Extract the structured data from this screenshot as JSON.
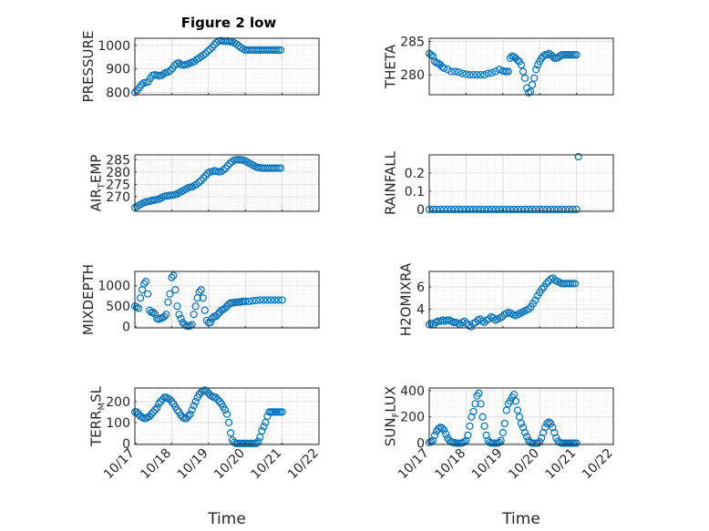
{
  "figure": {
    "title": "Figure 2 low",
    "marker_color": "#0072BD"
  },
  "chart_data": [
    {
      "id": "pressure",
      "type": "scatter",
      "ylabel": "PRESSURE",
      "xlim": [
        0,
        5
      ],
      "ylim": [
        790,
        1030
      ],
      "yticks": [
        800,
        900,
        1000
      ],
      "xticks": [
        0,
        1,
        2,
        3,
        4,
        5
      ],
      "x": [
        0,
        0.06,
        0.12,
        0.18,
        0.24,
        0.3,
        0.36,
        0.42,
        0.48,
        0.54,
        0.6,
        0.66,
        0.72,
        0.78,
        0.84,
        0.9,
        0.96,
        1.02,
        1.08,
        1.14,
        1.2,
        1.26,
        1.32,
        1.38,
        1.44,
        1.5,
        1.56,
        1.62,
        1.68,
        1.74,
        1.8,
        1.86,
        1.92,
        1.98,
        2.04,
        2.1,
        2.16,
        2.22,
        2.28,
        2.34,
        2.4,
        2.46,
        2.52,
        2.58,
        2.64,
        2.7,
        2.76,
        2.82,
        2.88,
        2.94,
        3.0,
        3.06,
        3.12,
        3.18,
        3.24,
        3.3,
        3.36,
        3.42,
        3.48,
        3.54,
        3.6,
        3.66,
        3.72,
        3.78,
        3.84,
        3.9,
        3.96
      ],
      "y": [
        800,
        808,
        820,
        832,
        840,
        842,
        845,
        860,
        872,
        875,
        873,
        870,
        872,
        878,
        884,
        886,
        892,
        902,
        915,
        922,
        925,
        918,
        916,
        918,
        920,
        925,
        928,
        932,
        940,
        945,
        952,
        958,
        965,
        975,
        982,
        992,
        1003,
        1012,
        1018,
        1020,
        1018,
        1017,
        1018,
        1016,
        1015,
        1010,
        1005,
        998,
        990,
        985,
        980,
        980,
        980,
        980,
        980,
        980,
        980,
        980,
        980,
        980,
        980,
        980,
        980,
        980,
        980,
        980,
        980
      ]
    },
    {
      "id": "theta",
      "type": "scatter",
      "ylabel": "THETA",
      "xlim": [
        0,
        5
      ],
      "ylim": [
        277,
        285.5
      ],
      "yticks": [
        280,
        285
      ],
      "xticks": [
        0,
        1,
        2,
        3,
        4,
        5
      ],
      "x": [
        0,
        0.05,
        0.1,
        0.15,
        0.2,
        0.25,
        0.3,
        0.35,
        0.4,
        0.5,
        0.6,
        0.7,
        0.8,
        0.9,
        1.0,
        1.1,
        1.2,
        1.3,
        1.4,
        1.5,
        1.6,
        1.7,
        1.8,
        1.9,
        2.0,
        2.05,
        2.1,
        2.15,
        2.2,
        2.25,
        2.3,
        2.35,
        2.4,
        2.45,
        2.5,
        2.55,
        2.6,
        2.65,
        2.7,
        2.75,
        2.8,
        2.85,
        2.9,
        2.95,
        3.0,
        3.05,
        3.1,
        3.15,
        3.2,
        3.25,
        3.3,
        3.35,
        3.4,
        3.45,
        3.5,
        3.55,
        3.6,
        3.65,
        3.7,
        3.75,
        3.8,
        3.85,
        3.9,
        3.95,
        4.0
      ],
      "y": [
        283.2,
        283,
        282.8,
        282,
        281.8,
        281.7,
        281.5,
        281.2,
        281,
        280.8,
        280.5,
        280.5,
        280.4,
        280.2,
        280.1,
        280,
        280,
        280,
        280,
        280,
        280.2,
        280.3,
        280.5,
        280.8,
        280.6,
        280.5,
        280.5,
        280.5,
        282.5,
        282.8,
        282.7,
        282.5,
        282.2,
        282,
        281.5,
        280.5,
        279.5,
        278,
        277.3,
        277.5,
        278.5,
        279.5,
        280.8,
        281.5,
        282,
        282.5,
        282.8,
        283,
        283,
        283.2,
        283,
        282.8,
        282.5,
        282.5,
        282.6,
        282.8,
        283,
        283,
        283,
        283,
        283,
        283,
        283,
        283,
        283
      ]
    },
    {
      "id": "air_temp",
      "type": "scatter",
      "ylabel_main": "AIR",
      "ylabel_sub": "T",
      "ylabel_rest": "EMP",
      "xlim": [
        0,
        5
      ],
      "ylim": [
        264,
        287
      ],
      "yticks": [
        270,
        275,
        280,
        285
      ],
      "xticks": [
        0,
        1,
        2,
        3,
        4,
        5
      ],
      "x": [
        0,
        0.06,
        0.12,
        0.18,
        0.24,
        0.3,
        0.36,
        0.42,
        0.48,
        0.54,
        0.6,
        0.66,
        0.72,
        0.78,
        0.84,
        0.9,
        0.96,
        1.02,
        1.08,
        1.14,
        1.2,
        1.26,
        1.32,
        1.38,
        1.44,
        1.5,
        1.56,
        1.62,
        1.68,
        1.74,
        1.8,
        1.86,
        1.92,
        1.98,
        2.04,
        2.1,
        2.16,
        2.22,
        2.28,
        2.34,
        2.4,
        2.46,
        2.52,
        2.58,
        2.64,
        2.7,
        2.76,
        2.82,
        2.88,
        2.94,
        3.0,
        3.06,
        3.12,
        3.18,
        3.24,
        3.3,
        3.36,
        3.42,
        3.48,
        3.54,
        3.6,
        3.66,
        3.72,
        3.78,
        3.84,
        3.9,
        3.96
      ],
      "y": [
        265.5,
        266,
        266.5,
        267,
        267.5,
        267.8,
        268,
        268.2,
        268.5,
        268.6,
        268.8,
        269,
        269.5,
        270,
        270.2,
        270.3,
        270.5,
        270.6,
        270.8,
        271,
        271.5,
        272,
        272.5,
        273,
        273.5,
        273.8,
        274,
        274.5,
        275,
        275.8,
        276.5,
        277.5,
        278.5,
        279.5,
        280,
        280.2,
        280.5,
        280.3,
        280.1,
        280.2,
        280.8,
        281.5,
        282.5,
        283.5,
        284.2,
        284.8,
        285,
        285,
        285,
        284.8,
        284.5,
        284,
        283.5,
        283,
        282.5,
        282,
        281.8,
        281.7,
        281.6,
        281.6,
        281.6,
        281.6,
        281.6,
        281.6,
        281.6,
        281.6,
        281.6
      ]
    },
    {
      "id": "rainfall",
      "type": "scatter",
      "ylabel": "RAINFALL",
      "xlim": [
        0,
        5
      ],
      "ylim": [
        -0.01,
        0.3
      ],
      "yticks": [
        0,
        0.1,
        0.2
      ],
      "ytick_labels": [
        "0",
        "0.1",
        "0.2"
      ],
      "xticks": [
        0,
        1,
        2,
        3,
        4,
        5
      ],
      "x": [
        0,
        0.1,
        0.2,
        0.3,
        0.4,
        0.5,
        0.6,
        0.7,
        0.8,
        0.9,
        1.0,
        1.1,
        1.2,
        1.3,
        1.4,
        1.5,
        1.6,
        1.7,
        1.8,
        1.9,
        2.0,
        2.1,
        2.2,
        2.3,
        2.4,
        2.5,
        2.6,
        2.7,
        2.8,
        2.9,
        3.0,
        3.1,
        3.2,
        3.3,
        3.4,
        3.5,
        3.6,
        3.7,
        3.8,
        3.9,
        4.0,
        4.05
      ],
      "y": [
        0,
        0,
        0,
        0,
        0,
        0,
        0,
        0,
        0,
        0,
        0,
        0,
        0,
        0,
        0,
        0,
        0,
        0,
        0,
        0,
        0,
        0,
        0,
        0,
        0,
        0,
        0,
        0,
        0,
        0,
        0,
        0,
        0,
        0,
        0,
        0,
        0,
        0,
        0,
        0,
        0,
        0.29
      ]
    },
    {
      "id": "mixdepth",
      "type": "scatter",
      "ylabel": "MIXDEPTH",
      "xlim": [
        0,
        5
      ],
      "ylim": [
        -30,
        1350
      ],
      "yticks": [
        0,
        500,
        1000
      ],
      "xticks": [
        0,
        1,
        2,
        3,
        4,
        5
      ],
      "x": [
        0,
        0.05,
        0.1,
        0.15,
        0.2,
        0.25,
        0.3,
        0.35,
        0.4,
        0.45,
        0.5,
        0.55,
        0.6,
        0.65,
        0.7,
        0.75,
        0.8,
        0.85,
        0.9,
        0.95,
        1.0,
        1.05,
        1.1,
        1.15,
        1.2,
        1.25,
        1.3,
        1.35,
        1.4,
        1.45,
        1.5,
        1.55,
        1.6,
        1.65,
        1.7,
        1.75,
        1.8,
        1.85,
        1.9,
        1.95,
        2.0,
        2.05,
        2.1,
        2.15,
        2.2,
        2.25,
        2.3,
        2.35,
        2.4,
        2.45,
        2.5,
        2.55,
        2.6,
        2.65,
        2.7,
        2.75,
        2.8,
        2.85,
        2.9,
        2.95,
        3.0,
        3.1,
        3.2,
        3.3,
        3.4,
        3.5,
        3.6,
        3.7,
        3.8,
        3.9,
        4.0
      ],
      "y": [
        500,
        480,
        450,
        700,
        900,
        1050,
        1100,
        800,
        400,
        350,
        350,
        300,
        200,
        180,
        200,
        220,
        250,
        300,
        600,
        800,
        1200,
        1250,
        900,
        500,
        300,
        200,
        100,
        50,
        20,
        10,
        20,
        50,
        300,
        500,
        700,
        850,
        900,
        700,
        400,
        150,
        100,
        100,
        200,
        250,
        250,
        300,
        350,
        400,
        420,
        450,
        500,
        550,
        580,
        580,
        590,
        600,
        600,
        600,
        610,
        620,
        620,
        620,
        630,
        640,
        650,
        650,
        650,
        650,
        650,
        650,
        650
      ]
    },
    {
      "id": "h2omixra",
      "type": "scatter",
      "ylabel": "H2OMIXRA",
      "xlim": [
        0,
        5
      ],
      "ylim": [
        2.3,
        7.4
      ],
      "yticks": [
        4,
        6
      ],
      "xticks": [
        0,
        1,
        2,
        3,
        4,
        5
      ],
      "x": [
        0,
        0.06,
        0.12,
        0.18,
        0.24,
        0.3,
        0.36,
        0.42,
        0.48,
        0.54,
        0.6,
        0.66,
        0.72,
        0.78,
        0.84,
        0.9,
        0.96,
        1.02,
        1.08,
        1.14,
        1.2,
        1.26,
        1.32,
        1.38,
        1.44,
        1.5,
        1.56,
        1.62,
        1.68,
        1.74,
        1.8,
        1.86,
        1.92,
        1.98,
        2.04,
        2.1,
        2.16,
        2.22,
        2.28,
        2.34,
        2.4,
        2.46,
        2.52,
        2.58,
        2.64,
        2.7,
        2.76,
        2.82,
        2.88,
        2.94,
        3.0,
        3.06,
        3.12,
        3.18,
        3.24,
        3.3,
        3.36,
        3.42,
        3.48,
        3.54,
        3.6,
        3.66,
        3.72,
        3.78,
        3.84,
        3.9,
        3.96
      ],
      "y": [
        2.6,
        2.7,
        2.6,
        2.8,
        2.9,
        2.9,
        3.0,
        2.9,
        3.0,
        3.0,
        2.9,
        2.8,
        2.8,
        2.7,
        2.6,
        2.8,
        2.9,
        2.7,
        2.5,
        2.4,
        2.7,
        2.8,
        3.0,
        3.1,
        2.9,
        2.8,
        3.0,
        3.1,
        3.3,
        3.2,
        3.0,
        3.1,
        3.2,
        3.3,
        3.5,
        3.6,
        3.7,
        3.6,
        3.5,
        3.4,
        3.5,
        3.6,
        3.7,
        3.8,
        3.9,
        4.0,
        4.2,
        4.5,
        4.8,
        5.2,
        5.5,
        5.8,
        6.0,
        6.3,
        6.5,
        6.7,
        6.8,
        6.6,
        6.5,
        6.4,
        6.3,
        6.3,
        6.3,
        6.3,
        6.3,
        6.3,
        6.3
      ]
    },
    {
      "id": "terr_msl",
      "type": "scatter",
      "ylabel_main": "TERR",
      "ylabel_sub": "M",
      "ylabel_rest": "SL",
      "xlim": [
        0,
        5
      ],
      "ylim": [
        -5,
        265
      ],
      "yticks": [
        0,
        100,
        200
      ],
      "xticks": [
        0,
        1,
        2,
        3,
        4,
        5
      ],
      "xtick_labels": [
        "10/17",
        "10/18",
        "10/19",
        "10/20",
        "10/21",
        "10/22"
      ],
      "xlabel": "Time",
      "x": [
        0,
        0.05,
        0.1,
        0.15,
        0.2,
        0.25,
        0.3,
        0.35,
        0.4,
        0.45,
        0.5,
        0.55,
        0.6,
        0.65,
        0.7,
        0.75,
        0.8,
        0.85,
        0.9,
        0.95,
        1.0,
        1.05,
        1.1,
        1.15,
        1.2,
        1.25,
        1.3,
        1.35,
        1.4,
        1.45,
        1.5,
        1.55,
        1.6,
        1.65,
        1.7,
        1.75,
        1.8,
        1.85,
        1.9,
        1.95,
        2.0,
        2.05,
        2.1,
        2.15,
        2.2,
        2.25,
        2.3,
        2.35,
        2.4,
        2.45,
        2.5,
        2.55,
        2.6,
        2.65,
        2.7,
        2.75,
        2.8,
        2.85,
        2.9,
        2.95,
        3.0,
        3.05,
        3.1,
        3.15,
        3.2,
        3.25,
        3.3,
        3.35,
        3.4,
        3.45,
        3.5,
        3.55,
        3.6,
        3.65,
        3.7,
        3.75,
        3.8,
        3.85,
        3.9,
        3.95,
        4.0
      ],
      "y": [
        150,
        150,
        140,
        130,
        125,
        120,
        120,
        125,
        130,
        140,
        150,
        160,
        170,
        190,
        200,
        210,
        220,
        220,
        215,
        210,
        200,
        190,
        175,
        160,
        150,
        135,
        125,
        120,
        120,
        130,
        140,
        160,
        180,
        200,
        220,
        235,
        245,
        250,
        255,
        250,
        240,
        230,
        225,
        220,
        220,
        210,
        200,
        190,
        175,
        160,
        140,
        100,
        50,
        15,
        5,
        0,
        0,
        0,
        0,
        0,
        0,
        0,
        0,
        0,
        0,
        0,
        0,
        10,
        30,
        60,
        80,
        100,
        130,
        150,
        150,
        150,
        150,
        150,
        150,
        150,
        150
      ]
    },
    {
      "id": "sun_flux",
      "type": "scatter",
      "ylabel_main": "SUN",
      "ylabel_sub": "F",
      "ylabel_rest": "LUX",
      "xlim": [
        0,
        5
      ],
      "ylim": [
        -10,
        420
      ],
      "yticks": [
        0,
        200,
        400
      ],
      "xticks": [
        0,
        1,
        2,
        3,
        4,
        5
      ],
      "xtick_labels": [
        "10/17",
        "10/18",
        "10/19",
        "10/20",
        "10/21",
        "10/22"
      ],
      "xlabel": "Time",
      "x": [
        0,
        0.05,
        0.1,
        0.15,
        0.2,
        0.25,
        0.3,
        0.35,
        0.4,
        0.45,
        0.5,
        0.55,
        0.6,
        0.65,
        0.7,
        0.75,
        0.8,
        0.85,
        0.9,
        0.95,
        1.0,
        1.05,
        1.1,
        1.15,
        1.2,
        1.25,
        1.3,
        1.35,
        1.4,
        1.45,
        1.5,
        1.55,
        1.6,
        1.65,
        1.7,
        1.75,
        1.8,
        1.85,
        1.9,
        1.95,
        2.0,
        2.05,
        2.1,
        2.15,
        2.2,
        2.25,
        2.3,
        2.35,
        2.4,
        2.45,
        2.5,
        2.55,
        2.6,
        2.65,
        2.7,
        2.75,
        2.8,
        2.85,
        2.9,
        2.95,
        3.0,
        3.05,
        3.1,
        3.15,
        3.2,
        3.25,
        3.3,
        3.35,
        3.4,
        3.45,
        3.5,
        3.55,
        3.6,
        3.65,
        3.7,
        3.75,
        3.8,
        3.85,
        3.9,
        3.95,
        4.0
      ],
      "y": [
        5,
        10,
        20,
        60,
        90,
        110,
        120,
        115,
        100,
        70,
        40,
        20,
        10,
        5,
        2,
        0,
        0,
        0,
        2,
        10,
        20,
        60,
        130,
        200,
        240,
        300,
        360,
        380,
        300,
        200,
        130,
        60,
        20,
        5,
        0,
        0,
        0,
        0,
        5,
        20,
        80,
        150,
        250,
        300,
        320,
        350,
        370,
        320,
        250,
        200,
        150,
        120,
        80,
        50,
        20,
        5,
        0,
        0,
        0,
        0,
        10,
        40,
        80,
        120,
        150,
        160,
        150,
        120,
        80,
        40,
        15,
        5,
        0,
        0,
        0,
        0,
        0,
        0,
        0,
        0,
        0
      ]
    }
  ]
}
